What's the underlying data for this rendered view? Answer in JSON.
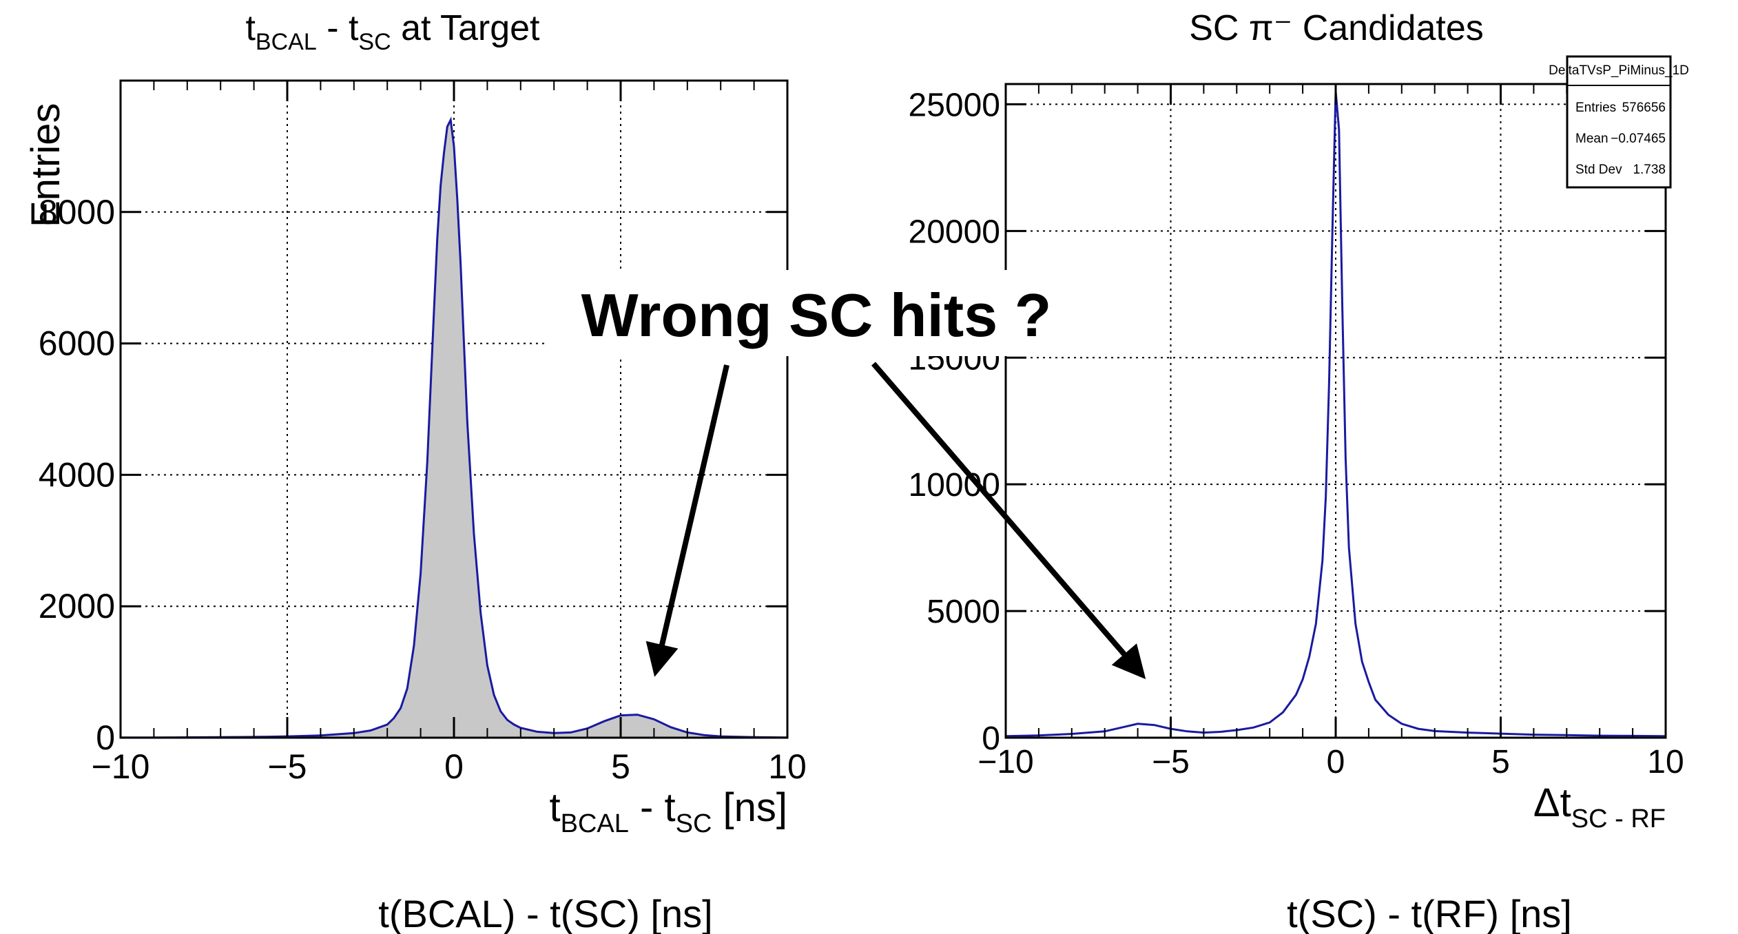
{
  "chart_data": [
    {
      "type": "histogram",
      "title": {
        "base": "t",
        "sub1": "BCAL",
        "mid": " - t",
        "sub2": "SC",
        "tail": " at Target"
      },
      "ylabel": "Entries",
      "xlabel": {
        "base": "t",
        "sub1": "BCAL",
        "mid": " - t",
        "sub2": "SC",
        "tail": " [ns]"
      },
      "caption": "t(BCAL) - t(SC) [ns]",
      "xlim": [
        -10,
        10
      ],
      "ylim": [
        0,
        10000
      ],
      "xticks": [
        "−10",
        "−5",
        "0",
        "5",
        "10"
      ],
      "yticks": [
        "0",
        "2000",
        "4000",
        "6000",
        "8000"
      ],
      "grid": true,
      "fill_color": "#c8c8c8",
      "line_color": "#1a1aa0",
      "x": [
        -10,
        -9,
        -8,
        -7,
        -6,
        -5,
        -4,
        -3,
        -2.5,
        -2,
        -1.8,
        -1.6,
        -1.4,
        -1.2,
        -1,
        -0.8,
        -0.6,
        -0.5,
        -0.4,
        -0.3,
        -0.2,
        -0.1,
        0,
        0.1,
        0.2,
        0.3,
        0.4,
        0.6,
        0.8,
        1,
        1.2,
        1.4,
        1.6,
        1.8,
        2,
        2.5,
        3,
        3.5,
        4,
        4.5,
        5,
        5.5,
        6,
        6.5,
        7,
        7.5,
        8,
        9,
        10
      ],
      "values": [
        2,
        3,
        5,
        8,
        12,
        20,
        35,
        70,
        110,
        200,
        300,
        450,
        750,
        1400,
        2500,
        4200,
        6500,
        7600,
        8400,
        8900,
        9300,
        9400,
        9000,
        8200,
        7200,
        6000,
        4800,
        3100,
        1900,
        1100,
        650,
        400,
        270,
        200,
        150,
        90,
        70,
        80,
        140,
        250,
        340,
        350,
        280,
        160,
        80,
        40,
        20,
        8,
        3
      ]
    },
    {
      "type": "histogram",
      "title": "SC π⁻ Candidates",
      "xlabel": {
        "base": "Δt",
        "sub": "SC - RF"
      },
      "caption": "t(SC) - t(RF) [ns]",
      "xlim": [
        -10,
        10
      ],
      "ylim": [
        0,
        25800
      ],
      "xticks": [
        "−10",
        "−5",
        "0",
        "5",
        "10"
      ],
      "yticks": [
        "0",
        "5000",
        "10000",
        "15000",
        "20000",
        "25000"
      ],
      "grid": true,
      "line_color": "#1a1aa0",
      "stats": {
        "name": "DeltaTVsP_PiMinus_1D",
        "rows": [
          {
            "label": "Entries",
            "value": "576656"
          },
          {
            "label": "Mean",
            "value": "−0.07465"
          },
          {
            "label": "Std Dev",
            "value": "1.738"
          }
        ]
      },
      "x": [
        -10,
        -9,
        -8,
        -7,
        -6.5,
        -6,
        -5.5,
        -5,
        -4.5,
        -4,
        -3.5,
        -3,
        -2.5,
        -2,
        -1.6,
        -1.2,
        -1,
        -0.8,
        -0.6,
        -0.4,
        -0.3,
        -0.2,
        -0.1,
        0,
        0.1,
        0.2,
        0.3,
        0.4,
        0.6,
        0.8,
        1,
        1.2,
        1.6,
        2,
        2.5,
        3,
        3.5,
        4,
        5,
        6,
        7,
        8,
        9,
        10
      ],
      "values": [
        60,
        90,
        150,
        250,
        400,
        550,
        500,
        350,
        250,
        200,
        230,
        300,
        400,
        600,
        1000,
        1700,
        2300,
        3200,
        4500,
        7000,
        9500,
        14000,
        20000,
        25500,
        24000,
        17000,
        11000,
        7500,
        4500,
        3000,
        2200,
        1500,
        900,
        550,
        350,
        260,
        230,
        200,
        160,
        120,
        100,
        80,
        70,
        60
      ]
    }
  ],
  "annotation": {
    "text": "Wrong SC hits ?",
    "points_to": [
      "second peak near 5.5 ns (left)",
      "side bump near −6 ns (right)"
    ]
  }
}
